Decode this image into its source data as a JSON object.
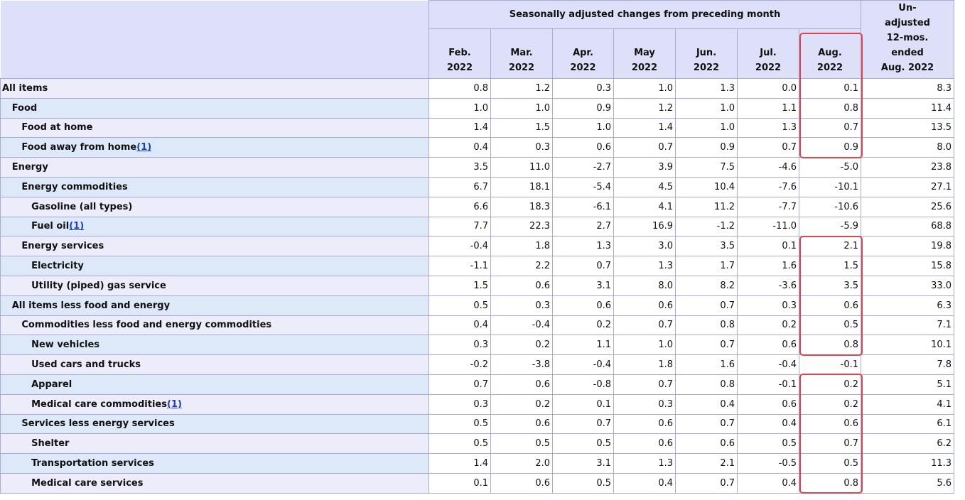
{
  "table": {
    "group_header": "Seasonally adjusted changes from preceding month",
    "columns": [
      [
        "Feb.",
        "2022"
      ],
      [
        "Mar.",
        "2022"
      ],
      [
        "Apr.",
        "2022"
      ],
      [
        "May",
        "2022"
      ],
      [
        "Jun.",
        "2022"
      ],
      [
        "Jul.",
        "2022"
      ],
      [
        "Aug.",
        "2022"
      ]
    ],
    "unadjusted_header": [
      "Un-",
      "adjusted",
      "12-mos.",
      "ended",
      "Aug. 2022"
    ],
    "rows": [
      {
        "label": "All items",
        "values": [
          "0.8",
          "1.2",
          "0.3",
          "1.0",
          "1.3",
          "0.0",
          "0.1",
          "8.3"
        ]
      },
      {
        "label": "Food",
        "values": [
          "1.0",
          "1.0",
          "0.9",
          "1.2",
          "1.0",
          "1.1",
          "0.8",
          "11.4"
        ]
      },
      {
        "label": "Food at home",
        "values": [
          "1.4",
          "1.5",
          "1.0",
          "1.4",
          "1.0",
          "1.3",
          "0.7",
          "13.5"
        ]
      },
      {
        "label": "Food away from home",
        "footnote": "(1)",
        "values": [
          "0.4",
          "0.3",
          "0.6",
          "0.7",
          "0.9",
          "0.7",
          "0.9",
          "8.0"
        ]
      },
      {
        "label": "Energy",
        "values": [
          "3.5",
          "11.0",
          "-2.7",
          "3.9",
          "7.5",
          "-4.6",
          "-5.0",
          "23.8"
        ]
      },
      {
        "label": "Energy commodities",
        "values": [
          "6.7",
          "18.1",
          "-5.4",
          "4.5",
          "10.4",
          "-7.6",
          "-10.1",
          "27.1"
        ]
      },
      {
        "label": "Gasoline (all types)",
        "values": [
          "6.6",
          "18.3",
          "-6.1",
          "4.1",
          "11.2",
          "-7.7",
          "-10.6",
          "25.6"
        ]
      },
      {
        "label": "Fuel oil",
        "footnote": "(1)",
        "values": [
          "7.7",
          "22.3",
          "2.7",
          "16.9",
          "-1.2",
          "-11.0",
          "-5.9",
          "68.8"
        ]
      },
      {
        "label": "Energy services",
        "values": [
          "-0.4",
          "1.8",
          "1.3",
          "3.0",
          "3.5",
          "0.1",
          "2.1",
          "19.8"
        ]
      },
      {
        "label": "Electricity",
        "values": [
          "-1.1",
          "2.2",
          "0.7",
          "1.3",
          "1.7",
          "1.6",
          "1.5",
          "15.8"
        ]
      },
      {
        "label": "Utility (piped) gas service",
        "values": [
          "1.5",
          "0.6",
          "3.1",
          "8.0",
          "8.2",
          "-3.6",
          "3.5",
          "33.0"
        ]
      },
      {
        "label": "All items less food and energy",
        "values": [
          "0.5",
          "0.3",
          "0.6",
          "0.6",
          "0.7",
          "0.3",
          "0.6",
          "6.3"
        ]
      },
      {
        "label": "Commodities less food and energy commodities",
        "values": [
          "0.4",
          "-0.4",
          "0.2",
          "0.7",
          "0.8",
          "0.2",
          "0.5",
          "7.1"
        ]
      },
      {
        "label": "New vehicles",
        "values": [
          "0.3",
          "0.2",
          "1.1",
          "1.0",
          "0.7",
          "0.6",
          "0.8",
          "10.1"
        ]
      },
      {
        "label": "Used cars and trucks",
        "values": [
          "-0.2",
          "-3.8",
          "-0.4",
          "1.8",
          "1.6",
          "-0.4",
          "-0.1",
          "7.8"
        ]
      },
      {
        "label": "Apparel",
        "values": [
          "0.7",
          "0.6",
          "-0.8",
          "0.7",
          "0.8",
          "-0.1",
          "0.2",
          "5.1"
        ]
      },
      {
        "label": "Medical care commodities",
        "footnote": "(1)",
        "values": [
          "0.3",
          "0.2",
          "0.1",
          "0.3",
          "0.4",
          "0.6",
          "0.2",
          "4.1"
        ]
      },
      {
        "label": "Services less energy services",
        "values": [
          "0.5",
          "0.6",
          "0.7",
          "0.6",
          "0.7",
          "0.4",
          "0.6",
          "6.1"
        ]
      },
      {
        "label": "Shelter",
        "values": [
          "0.5",
          "0.5",
          "0.5",
          "0.6",
          "0.6",
          "0.5",
          "0.7",
          "6.2"
        ]
      },
      {
        "label": "Transportation services",
        "values": [
          "1.4",
          "2.0",
          "3.1",
          "1.3",
          "2.1",
          "-0.5",
          "0.5",
          "11.3"
        ]
      },
      {
        "label": "Medical care services",
        "values": [
          "0.1",
          "0.6",
          "0.5",
          "0.4",
          "0.7",
          "0.4",
          "0.8",
          "5.6"
        ]
      }
    ]
  }
}
